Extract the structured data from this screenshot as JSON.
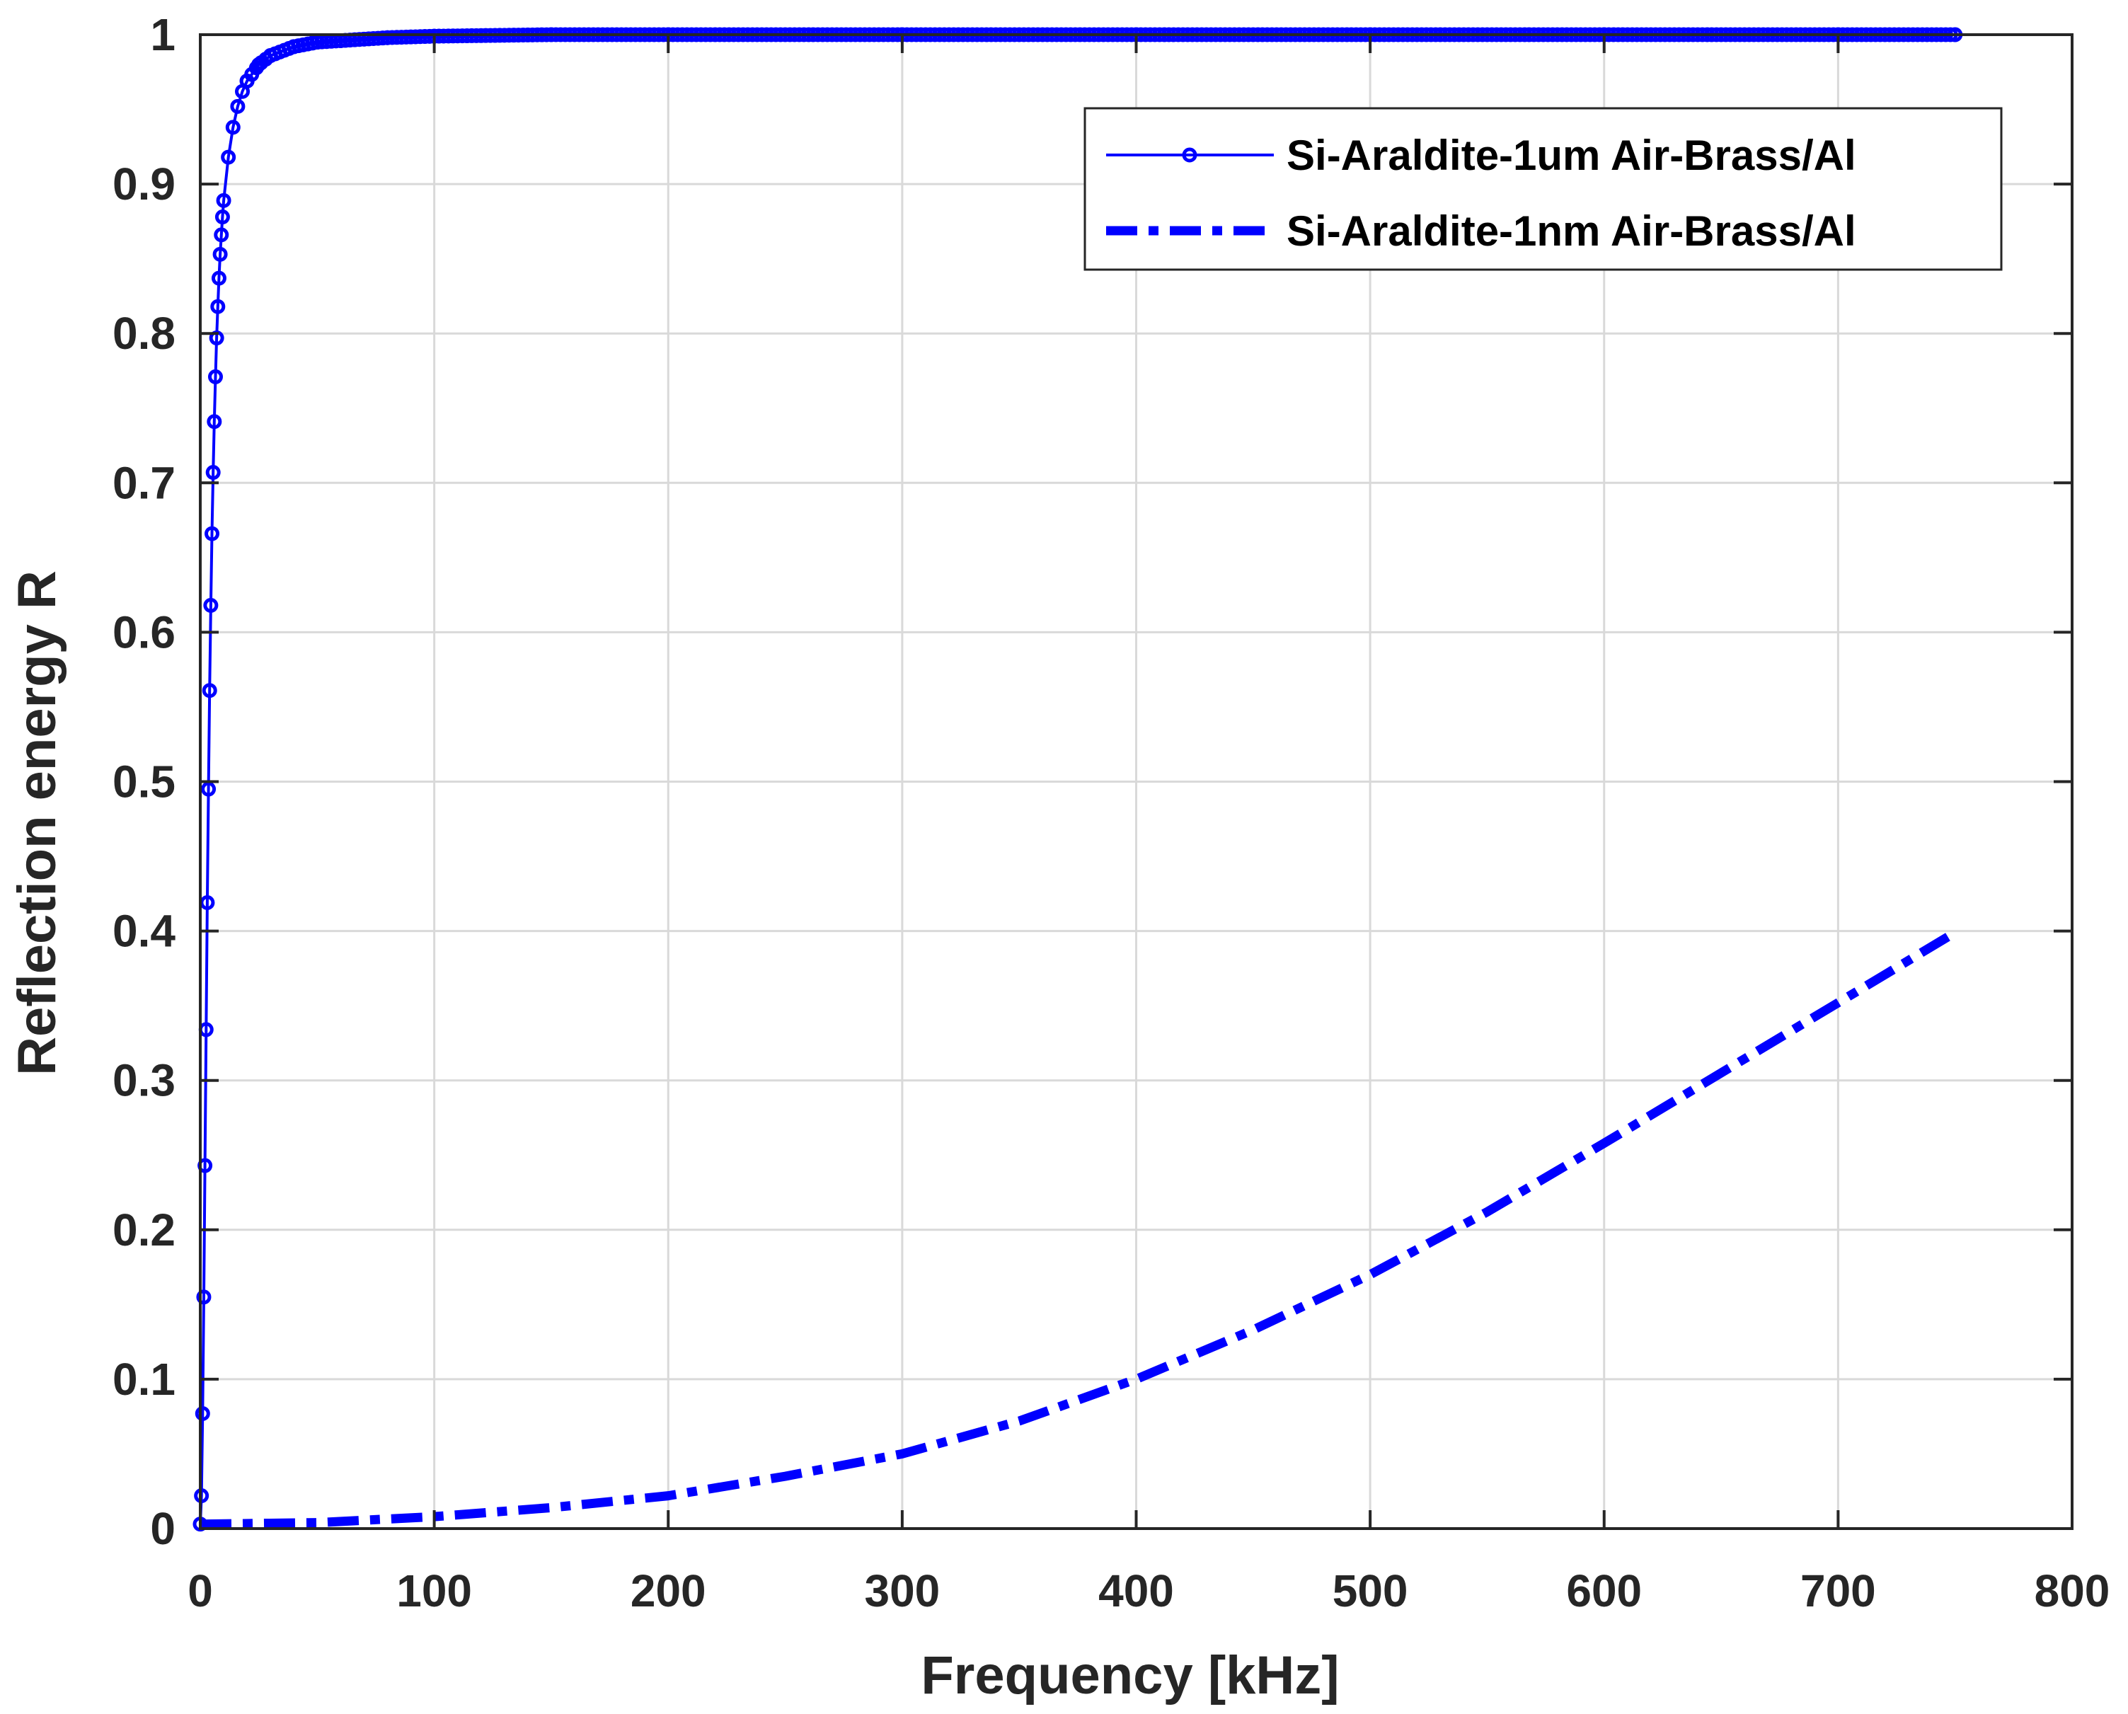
{
  "chart_data": {
    "type": "line",
    "title": "",
    "xlabel": "Frequency [kHz]",
    "ylabel": "Reflection energy R",
    "xlim": [
      0,
      800
    ],
    "ylim": [
      0,
      1
    ],
    "xticks": [
      0,
      100,
      200,
      300,
      400,
      500,
      600,
      700,
      800
    ],
    "yticks": [
      0,
      0.1,
      0.2,
      0.3,
      0.4,
      0.5,
      0.6,
      0.7,
      0.8,
      0.9,
      1
    ],
    "xtick_labels": [
      "0",
      "100",
      "200",
      "300",
      "400",
      "500",
      "600",
      "700",
      "800"
    ],
    "ytick_labels": [
      "0",
      "0.1",
      "0.2",
      "0.3",
      "0.4",
      "0.5",
      "0.6",
      "0.7",
      "0.8",
      "0.9",
      "1"
    ],
    "grid": true,
    "legend_position": "top-right",
    "colors": {
      "series": "#0000ff",
      "grid": "#d9d9d9",
      "axis": "#262626"
    },
    "series": [
      {
        "name": "Si-Araldite-1um Air-Brass/Al",
        "style": "solid-with-circle-markers",
        "x": [
          0,
          0.5,
          1.0,
          1.5,
          2.0,
          2.5,
          3.0,
          3.5,
          4.0,
          4.5,
          5.0,
          5.5,
          6.0,
          6.5,
          7.0,
          7.5,
          8.0,
          8.5,
          9.0,
          9.5,
          10,
          12,
          14,
          16,
          18,
          20,
          25,
          30,
          40,
          50,
          60,
          80,
          100,
          150,
          200,
          300,
          400,
          500,
          600,
          700,
          750
        ],
        "y": [
          0.003,
          0.022,
          0.077,
          0.155,
          0.243,
          0.334,
          0.419,
          0.495,
          0.561,
          0.618,
          0.666,
          0.707,
          0.741,
          0.771,
          0.797,
          0.818,
          0.837,
          0.853,
          0.866,
          0.878,
          0.889,
          0.918,
          0.938,
          0.952,
          0.962,
          0.969,
          0.98,
          0.986,
          0.992,
          0.995,
          0.996,
          0.998,
          0.999,
          1.0,
          1.0,
          1.0,
          1.0,
          1.0,
          1.0,
          1.0,
          1.0
        ]
      },
      {
        "name": "Si-Araldite-1nm Air-Brass/Al",
        "style": "dash-dot",
        "x": [
          0,
          50,
          100,
          150,
          200,
          250,
          300,
          350,
          400,
          450,
          500,
          550,
          600,
          650,
          700,
          750
        ],
        "y": [
          0.003,
          0.004,
          0.008,
          0.014,
          0.022,
          0.035,
          0.05,
          0.072,
          0.1,
          0.133,
          0.17,
          0.212,
          0.258,
          0.305,
          0.352,
          0.399
        ]
      }
    ]
  }
}
